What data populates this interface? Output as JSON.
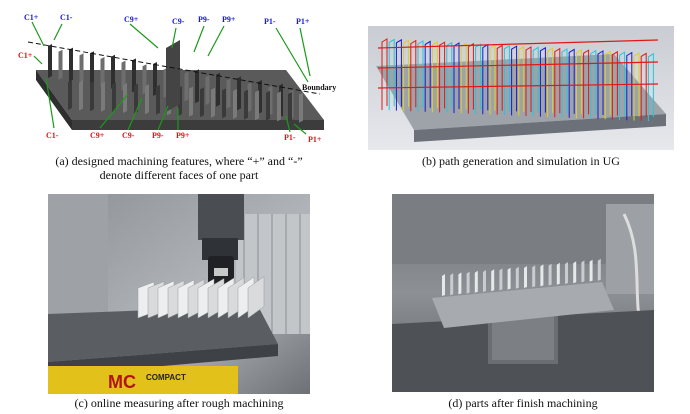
{
  "figure": {
    "panel_a": {
      "caption_line1": "(a) designed machining features, where “+” and “-”",
      "caption_line2": "denote different faces of one part",
      "labels": {
        "c1_plus_top": "C1+",
        "c1_minus_top": "C1-",
        "c9_plus_top": "C9+",
        "c9_minus_top": "C9-",
        "p9_minus_top": "P9-",
        "p9_plus_top": "P9+",
        "p1_minus_top": "P1-",
        "p1_plus_top": "P1+",
        "c1_plus_left": "C1+",
        "c1_minus_bottom": "C1-",
        "c9_plus_bottom": "C9+",
        "c9_minus_bottom": "C9-",
        "p9_minus_bottom": "P9-",
        "p9_plus_bottom": "P9+",
        "p1_minus_bottom": "P1-",
        "p1_plus_bottom": "P1+",
        "boundary": "Boundary"
      },
      "colors": {
        "blue": "#1a1acc",
        "red": "#d81818",
        "green": "#1a9a1a",
        "part": "#4a4a4a"
      }
    },
    "panel_b": {
      "caption": "(b) path generation and simulation in UG"
    },
    "panel_c": {
      "caption": "(c) online measuring after rough machining",
      "machine_brand": "MC",
      "machine_model": "COMPACT"
    },
    "panel_d": {
      "caption": "(d) parts after finish machining"
    }
  }
}
